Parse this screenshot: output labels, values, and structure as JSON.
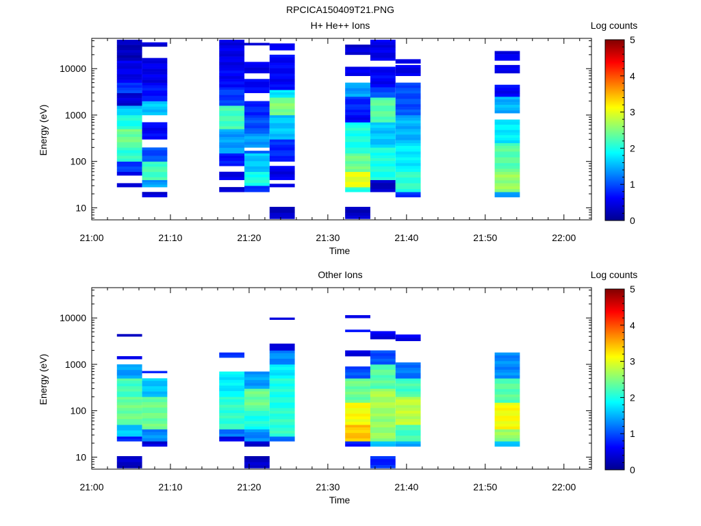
{
  "figure_title": "RPCICA150409T21.PNG",
  "colorscale": {
    "stops": [
      "#00008f",
      "#0000ff",
      "#0080ff",
      "#00ffff",
      "#80ff80",
      "#ffff00",
      "#ff8000",
      "#ff0000",
      "#800000"
    ],
    "min": 0,
    "max": 5
  },
  "chart_data": [
    {
      "type": "heatmap",
      "title": "H+ He++ Ions",
      "xlabel": "Time",
      "ylabel": "Energy (eV)",
      "colorbar_label": "Log counts",
      "colorbar_ticks": [
        "0",
        "1",
        "2",
        "3",
        "4",
        "5"
      ],
      "x_ticks": [
        {
          "t": 0,
          "label": "21:00"
        },
        {
          "t": 10,
          "label": "21:10"
        },
        {
          "t": 20,
          "label": "21:20"
        },
        {
          "t": 30,
          "label": "21:30"
        },
        {
          "t": 40,
          "label": "21:40"
        },
        {
          "t": 50,
          "label": "21:50"
        },
        {
          "t": 60,
          "label": "22:00"
        }
      ],
      "y_ticks": [
        {
          "e": 10,
          "label": "10"
        },
        {
          "e": 100,
          "label": "100"
        },
        {
          "e": 1000,
          "label": "1000"
        },
        {
          "e": 10000,
          "label": "10000"
        }
      ],
      "xlim_minutes": [
        0,
        63.5
      ],
      "ylim_ev": [
        5.5,
        45000
      ],
      "yscale": "log",
      "columns": [
        {
          "t0": 3.2,
          "t1": 6.4,
          "segments": [
            [
              28,
              34,
              0.4
            ],
            [
              50,
              60,
              0.6
            ],
            [
              60,
              100,
              0.9
            ],
            [
              100,
              200,
              2.1
            ],
            [
              200,
              500,
              2.4
            ],
            [
              500,
              1000,
              2.0
            ],
            [
              1000,
              1600,
              1.6
            ],
            [
              1600,
              3000,
              0.4
            ],
            [
              3000,
              5000,
              0.9
            ],
            [
              5000,
              15000,
              0.5
            ],
            [
              15000,
              42000,
              0.25
            ]
          ]
        },
        {
          "t0": 6.4,
          "t1": 9.6,
          "segments": [
            [
              17,
              22,
              0.4
            ],
            [
              28,
              40,
              1.4
            ],
            [
              40,
              100,
              2.2
            ],
            [
              100,
              200,
              1.0
            ],
            [
              300,
              700,
              0.6
            ],
            [
              1000,
              2000,
              1.6
            ],
            [
              2000,
              5000,
              0.7
            ],
            [
              5000,
              17000,
              0.5
            ],
            [
              30000,
              37000,
              0.4
            ]
          ]
        },
        {
          "t0": 16.2,
          "t1": 19.4,
          "segments": [
            [
              22,
              28,
              0.4
            ],
            [
              40,
              60,
              0.5
            ],
            [
              80,
              150,
              0.7
            ],
            [
              150,
              500,
              1.4
            ],
            [
              500,
              1600,
              2.2
            ],
            [
              1600,
              4000,
              0.9
            ],
            [
              4000,
              12000,
              0.6
            ],
            [
              12000,
              42000,
              0.5
            ]
          ]
        },
        {
          "t0": 19.4,
          "t1": 22.6,
          "segments": [
            [
              22,
              30,
              0.9
            ],
            [
              30,
              60,
              2.0
            ],
            [
              60,
              150,
              1.6
            ],
            [
              150,
              170,
              1.0
            ],
            [
              200,
              400,
              1.4
            ],
            [
              400,
              1000,
              1.0
            ],
            [
              1000,
              2000,
              0.8
            ],
            [
              3000,
              6000,
              0.6
            ],
            [
              8000,
              14000,
              0.5
            ],
            [
              32000,
              36000,
              0.4
            ]
          ]
        },
        {
          "t0": 22.6,
          "t1": 25.8,
          "segments": [
            [
              5.8,
              10.5,
              0.3
            ],
            [
              28,
              33,
              0.4
            ],
            [
              40,
              80,
              0.5
            ],
            [
              100,
              300,
              0.8
            ],
            [
              300,
              1000,
              1.6
            ],
            [
              1000,
              2400,
              2.5
            ],
            [
              2400,
              3500,
              1.8
            ],
            [
              3500,
              20000,
              0.6
            ],
            [
              25000,
              35000,
              0.5
            ]
          ]
        },
        {
          "t0": 32.2,
          "t1": 35.4,
          "segments": [
            [
              5.8,
              10.5,
              0.3
            ],
            [
              22,
              28,
              2.0
            ],
            [
              28,
              60,
              3.0
            ],
            [
              60,
              150,
              2.4
            ],
            [
              150,
              700,
              2.0
            ],
            [
              700,
              1000,
              0.6
            ],
            [
              1000,
              2500,
              0.8
            ],
            [
              2500,
              5000,
              1.4
            ],
            [
              7000,
              11000,
              0.5
            ],
            [
              20000,
              33000,
              0.4
            ]
          ]
        },
        {
          "t0": 35.4,
          "t1": 38.6,
          "segments": [
            [
              22,
              40,
              0.3
            ],
            [
              40,
              200,
              2.0
            ],
            [
              200,
              700,
              1.6
            ],
            [
              700,
              2400,
              2.3
            ],
            [
              2400,
              4000,
              1.0
            ],
            [
              4000,
              11000,
              0.6
            ],
            [
              15000,
              42000,
              0.5
            ]
          ]
        },
        {
          "t0": 38.6,
          "t1": 41.8,
          "segments": [
            [
              17,
              22,
              0.8
            ],
            [
              22,
              60,
              2.1
            ],
            [
              60,
              250,
              1.8
            ],
            [
              250,
              1000,
              1.5
            ],
            [
              1000,
              5000,
              1.0
            ],
            [
              7000,
              12000,
              0.5
            ],
            [
              13000,
              16000,
              0.4
            ]
          ]
        },
        {
          "t0": 51.2,
          "t1": 54.4,
          "segments": [
            [
              17,
              22,
              1.3
            ],
            [
              22,
              60,
              2.6
            ],
            [
              60,
              250,
              2.3
            ],
            [
              250,
              800,
              1.8
            ],
            [
              1100,
              2500,
              1.5
            ],
            [
              2500,
              4500,
              0.6
            ],
            [
              8000,
              12000,
              0.5
            ],
            [
              15000,
              24000,
              0.5
            ]
          ]
        }
      ]
    },
    {
      "type": "heatmap",
      "title": "Other Ions",
      "xlabel": "Time",
      "ylabel": "Energy (eV)",
      "colorbar_label": "Log counts",
      "colorbar_ticks": [
        "0",
        "1",
        "2",
        "3",
        "4",
        "5"
      ],
      "x_ticks": [
        {
          "t": 0,
          "label": "21:00"
        },
        {
          "t": 10,
          "label": "21:10"
        },
        {
          "t": 20,
          "label": "21:20"
        },
        {
          "t": 30,
          "label": "21:30"
        },
        {
          "t": 40,
          "label": "21:40"
        },
        {
          "t": 50,
          "label": "21:50"
        },
        {
          "t": 60,
          "label": "22:00"
        }
      ],
      "y_ticks": [
        {
          "e": 10,
          "label": "10"
        },
        {
          "e": 100,
          "label": "100"
        },
        {
          "e": 1000,
          "label": "1000"
        },
        {
          "e": 10000,
          "label": "10000"
        }
      ],
      "xlim_minutes": [
        0,
        63.5
      ],
      "ylim_ev": [
        5.5,
        45000
      ],
      "yscale": "log",
      "columns": [
        {
          "t0": 3.2,
          "t1": 6.4,
          "segments": [
            [
              5.8,
              10.5,
              0.3
            ],
            [
              22,
              28,
              0.8
            ],
            [
              28,
              50,
              1.6
            ],
            [
              50,
              200,
              2.4
            ],
            [
              200,
              500,
              2.2
            ],
            [
              500,
              1000,
              1.4
            ],
            [
              1300,
              1500,
              0.6
            ],
            [
              4000,
              4500,
              0.4
            ]
          ]
        },
        {
          "t0": 6.4,
          "t1": 9.6,
          "segments": [
            [
              17,
              22,
              0.4
            ],
            [
              22,
              40,
              1.3
            ],
            [
              40,
              200,
              2.4
            ],
            [
              200,
              500,
              1.6
            ],
            [
              650,
              720,
              0.7
            ]
          ]
        },
        {
          "t0": 16.2,
          "t1": 19.4,
          "segments": [
            [
              22,
              28,
              0.5
            ],
            [
              28,
              40,
              1.2
            ],
            [
              40,
              200,
              2.1
            ],
            [
              200,
              700,
              1.8
            ],
            [
              1400,
              1800,
              0.8
            ]
          ]
        },
        {
          "t0": 19.4,
          "t1": 22.6,
          "segments": [
            [
              5.8,
              10.5,
              0.3
            ],
            [
              17,
              22,
              0.4
            ],
            [
              22,
              40,
              1.3
            ],
            [
              40,
              100,
              2.0
            ],
            [
              100,
              300,
              2.4
            ],
            [
              300,
              700,
              1.4
            ]
          ]
        },
        {
          "t0": 22.6,
          "t1": 25.8,
          "segments": [
            [
              22,
              28,
              1.2
            ],
            [
              28,
              100,
              2.1
            ],
            [
              100,
              500,
              2.0
            ],
            [
              500,
              1000,
              1.8
            ],
            [
              1000,
              2000,
              1.3
            ],
            [
              2000,
              2800,
              0.5
            ],
            [
              9200,
              10200,
              0.4
            ]
          ]
        },
        {
          "t0": 32.2,
          "t1": 35.4,
          "segments": [
            [
              17,
              22,
              0.8
            ],
            [
              22,
              50,
              3.4
            ],
            [
              50,
              150,
              3.1
            ],
            [
              150,
              500,
              2.4
            ],
            [
              500,
              900,
              1.0
            ],
            [
              1500,
              2000,
              0.5
            ],
            [
              5000,
              5600,
              0.6
            ],
            [
              10000,
              11500,
              0.4
            ]
          ]
        },
        {
          "t0": 35.4,
          "t1": 38.6,
          "segments": [
            [
              5.8,
              10.5,
              0.8
            ],
            [
              17,
              22,
              1.5
            ],
            [
              22,
              100,
              2.6
            ],
            [
              100,
              300,
              2.7
            ],
            [
              300,
              1000,
              2.3
            ],
            [
              1000,
              2000,
              1.0
            ],
            [
              3500,
              5200,
              0.5
            ]
          ]
        },
        {
          "t0": 38.6,
          "t1": 41.8,
          "segments": [
            [
              17,
              22,
              1.4
            ],
            [
              22,
              50,
              2.2
            ],
            [
              50,
              200,
              2.8
            ],
            [
              200,
              500,
              2.2
            ],
            [
              500,
              1100,
              1.2
            ],
            [
              3200,
              4400,
              0.5
            ]
          ]
        },
        {
          "t0": 51.2,
          "t1": 54.4,
          "segments": [
            [
              17,
              22,
              1.5
            ],
            [
              22,
              40,
              2.6
            ],
            [
              40,
              150,
              3.1
            ],
            [
              150,
              500,
              2.3
            ],
            [
              500,
              1800,
              1.3
            ]
          ]
        }
      ]
    }
  ]
}
